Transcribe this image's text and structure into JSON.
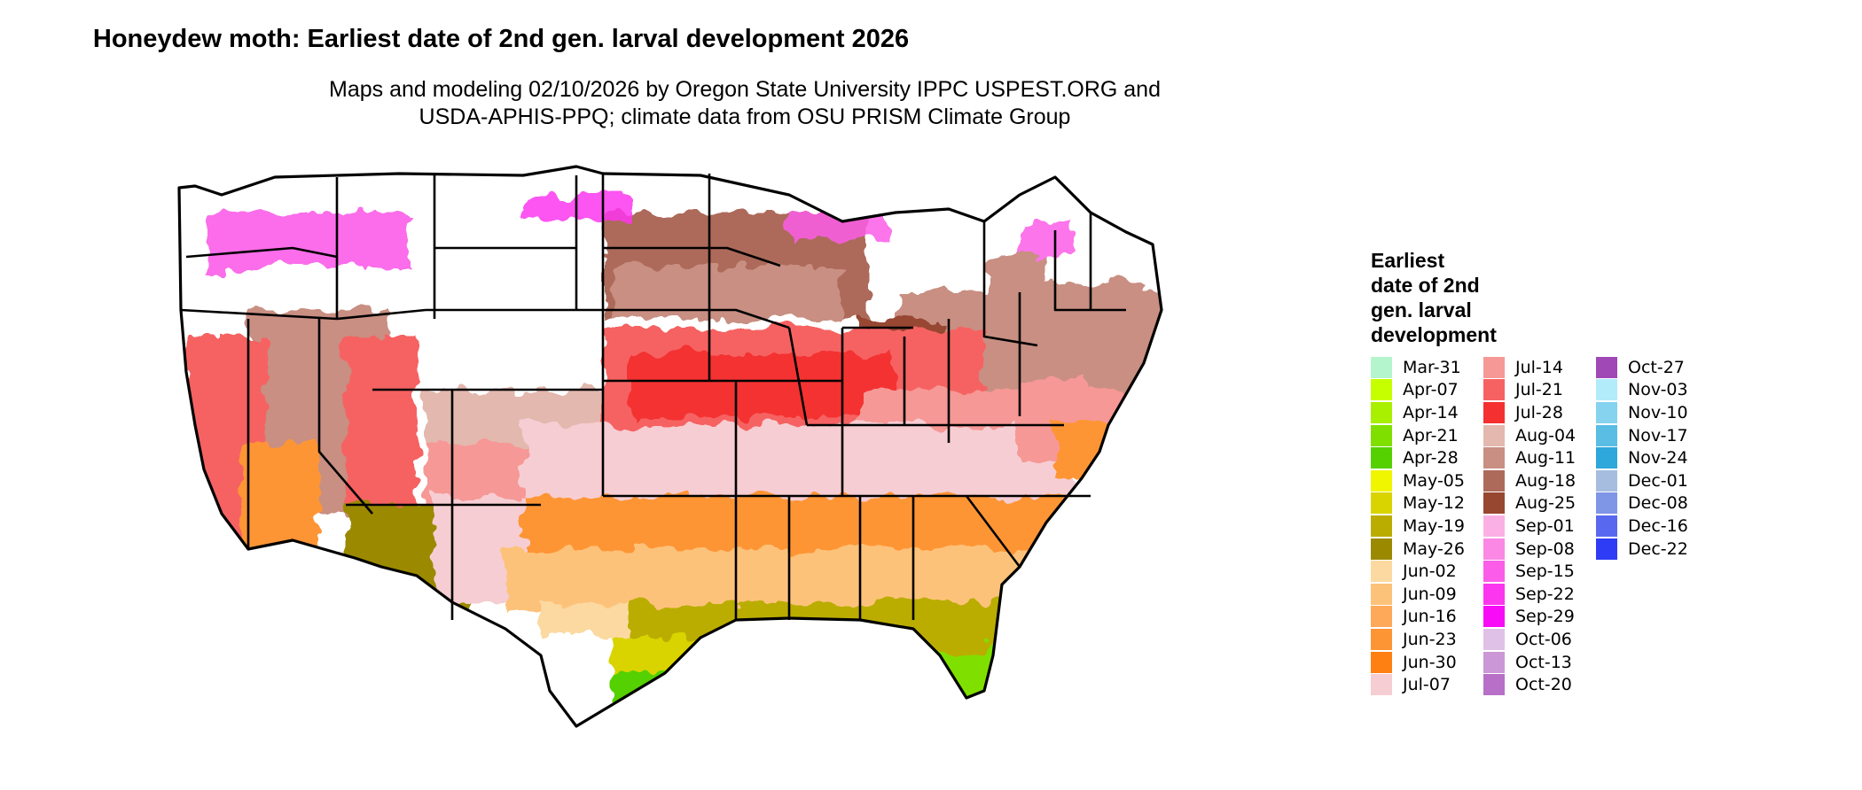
{
  "title": "Honeydew moth: Earliest date of 2nd gen. larval development 2026",
  "subtitle_line1": "Maps and modeling 02/10/2026 by Oregon State University IPPC USPEST.ORG and",
  "subtitle_line2": "USDA-APHIS-PPQ; climate data from OSU PRISM Climate Group",
  "legend": {
    "title_lines": [
      "Earliest",
      "date of 2nd",
      "gen. larval",
      "development"
    ],
    "columns": [
      [
        {
          "label": "Mar-31",
          "color": "#b5f5cd"
        },
        {
          "label": "Apr-07",
          "color": "#c6ff00"
        },
        {
          "label": "Apr-14",
          "color": "#a9ef00"
        },
        {
          "label": "Apr-21",
          "color": "#7fe000"
        },
        {
          "label": "Apr-28",
          "color": "#55d000"
        },
        {
          "label": "May-05",
          "color": "#f0f500"
        },
        {
          "label": "May-12",
          "color": "#d9d400"
        },
        {
          "label": "May-19",
          "color": "#baad00"
        },
        {
          "label": "May-26",
          "color": "#9b8a00"
        },
        {
          "label": "Jun-02",
          "color": "#fbd9a0"
        },
        {
          "label": "Jun-09",
          "color": "#fdc27a"
        },
        {
          "label": "Jun-16",
          "color": "#fea95a"
        },
        {
          "label": "Jun-23",
          "color": "#fe9535"
        },
        {
          "label": "Jun-30",
          "color": "#fe7f12"
        },
        {
          "label": "Jul-07",
          "color": "#f6cdd2"
        }
      ],
      [
        {
          "label": "Jul-14",
          "color": "#f69896"
        },
        {
          "label": "Jul-21",
          "color": "#f66262"
        },
        {
          "label": "Jul-28",
          "color": "#f43030"
        },
        {
          "label": "Aug-04",
          "color": "#e3b8ae"
        },
        {
          "label": "Aug-11",
          "color": "#c88f82"
        },
        {
          "label": "Aug-18",
          "color": "#ad6a5a"
        },
        {
          "label": "Aug-25",
          "color": "#974630"
        },
        {
          "label": "Sep-01",
          "color": "#fbb0e4"
        },
        {
          "label": "Sep-08",
          "color": "#fb88e4"
        },
        {
          "label": "Sep-15",
          "color": "#fb5de8"
        },
        {
          "label": "Sep-22",
          "color": "#fb36ee"
        },
        {
          "label": "Sep-29",
          "color": "#f80cf8"
        },
        {
          "label": "Oct-06",
          "color": "#dfc1e6"
        },
        {
          "label": "Oct-13",
          "color": "#cb97d6"
        },
        {
          "label": "Oct-20",
          "color": "#b86fc8"
        }
      ],
      [
        {
          "label": "Oct-27",
          "color": "#9f48b6"
        },
        {
          "label": "Nov-03",
          "color": "#b2ebfa"
        },
        {
          "label": "Nov-10",
          "color": "#86d3ef"
        },
        {
          "label": "Nov-17",
          "color": "#59bde4"
        },
        {
          "label": "Nov-24",
          "color": "#2ea7da"
        },
        {
          "label": "Dec-01",
          "color": "#a6bde0"
        },
        {
          "label": "Dec-08",
          "color": "#7f95e6"
        },
        {
          "label": "Dec-16",
          "color": "#5869ef"
        },
        {
          "label": "Dec-22",
          "color": "#2f3cf6"
        }
      ]
    ]
  }
}
